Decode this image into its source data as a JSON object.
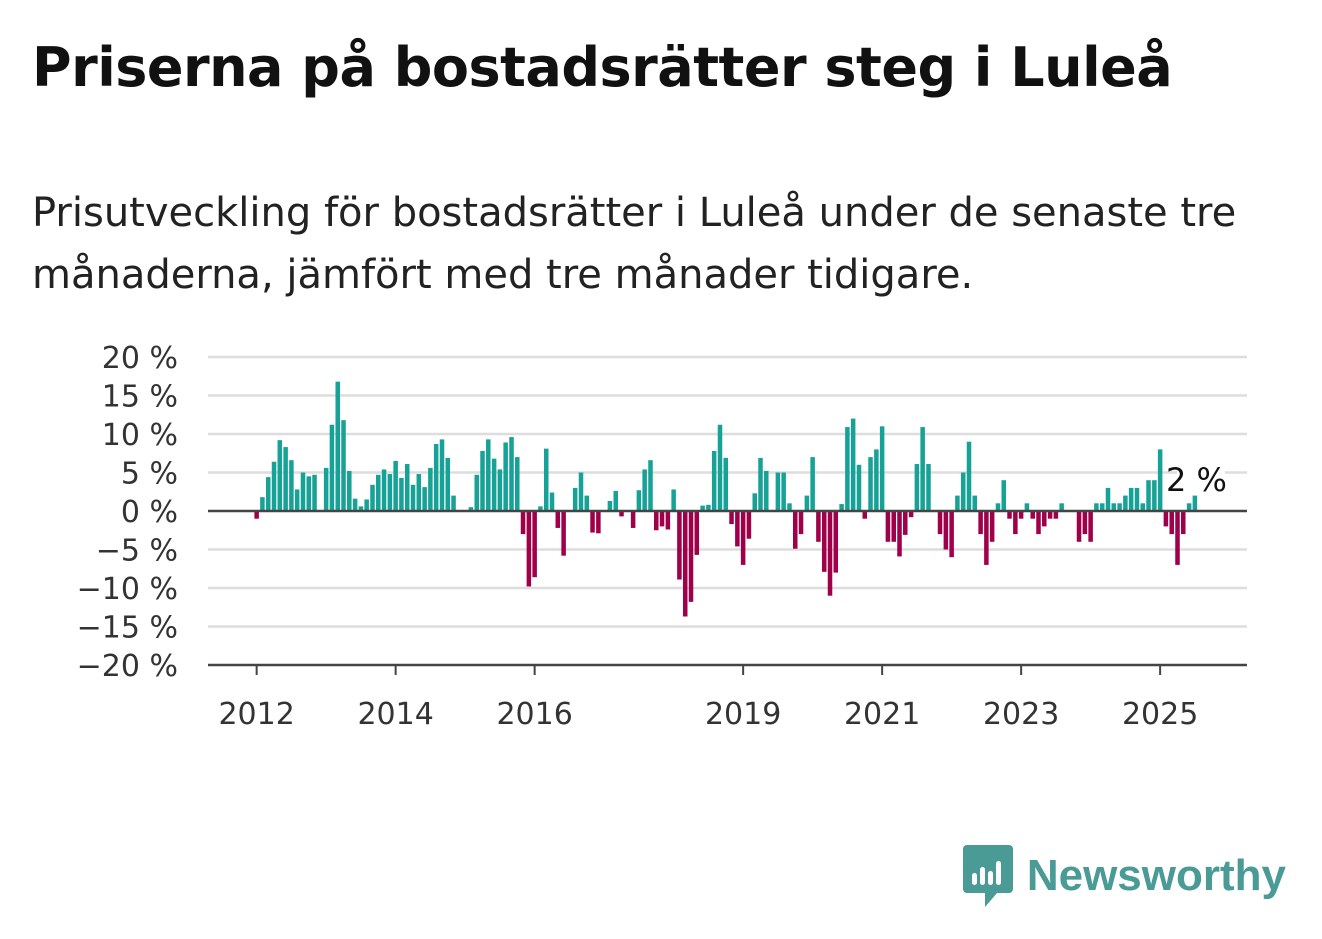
{
  "title": "Priserna på bostadsrätter steg i Luleå",
  "subtitle": "Prisutveckling för bostadsrätter i Luleå under de senaste tre månaderna, jämfört med tre månader tidigare.",
  "brand": {
    "name": "Newsworthy",
    "icon": "newsworthy-logo-icon"
  },
  "colors": {
    "positive": "#17a297",
    "negative": "#a0004a",
    "grid": "#dddddd",
    "axis": "#444444"
  },
  "chart_data": {
    "type": "bar",
    "title": "Priserna på bostadsrätter steg i Luleå",
    "ylim": [
      -20,
      20
    ],
    "xlim": [
      2011.3,
      2026.25
    ],
    "yticks": [
      20,
      15,
      10,
      5,
      0,
      -5,
      -10,
      -15,
      -20
    ],
    "ytick_labels": [
      "20 %",
      "15 %",
      "10 %",
      "5 %",
      "0 %",
      "−5 %",
      "−10 %",
      "−15 %",
      "−20 %"
    ],
    "xticks": [
      2012,
      2014,
      2016,
      2019,
      2021,
      2023,
      2025
    ],
    "xtick_labels": [
      "2012",
      "2014",
      "2016",
      "2019",
      "2021",
      "2023",
      "2025"
    ],
    "grid": true,
    "annotation": {
      "text": "2 %",
      "value": 2
    },
    "x": [
      2012.0,
      2012.083,
      2012.167,
      2012.25,
      2012.333,
      2012.417,
      2012.5,
      2012.583,
      2012.667,
      2012.75,
      2012.833,
      2012.917,
      2013.0,
      2013.083,
      2013.167,
      2013.25,
      2013.333,
      2013.417,
      2013.5,
      2013.583,
      2013.667,
      2013.75,
      2013.833,
      2013.917,
      2014.0,
      2014.083,
      2014.167,
      2014.25,
      2014.333,
      2014.417,
      2014.5,
      2014.583,
      2014.667,
      2014.75,
      2014.833,
      2014.917,
      2015.0,
      2015.083,
      2015.167,
      2015.25,
      2015.333,
      2015.417,
      2015.5,
      2015.583,
      2015.667,
      2015.75,
      2015.833,
      2015.917,
      2016.0,
      2016.083,
      2016.167,
      2016.25,
      2016.333,
      2016.417,
      2016.5,
      2016.583,
      2016.667,
      2016.75,
      2016.833,
      2016.917,
      2017.0,
      2017.083,
      2017.167,
      2017.25,
      2017.333,
      2017.417,
      2017.5,
      2017.583,
      2017.667,
      2017.75,
      2017.833,
      2017.917,
      2018.0,
      2018.083,
      2018.167,
      2018.25,
      2018.333,
      2018.417,
      2018.5,
      2018.583,
      2018.667,
      2018.75,
      2018.833,
      2018.917,
      2019.0,
      2019.083,
      2019.167,
      2019.25,
      2019.333,
      2019.417,
      2019.5,
      2019.583,
      2019.667,
      2019.75,
      2019.833,
      2019.917,
      2020.0,
      2020.083,
      2020.167,
      2020.25,
      2020.333,
      2020.417,
      2020.5,
      2020.583,
      2020.667,
      2020.75,
      2020.833,
      2020.917,
      2021.0,
      2021.083,
      2021.167,
      2021.25,
      2021.333,
      2021.417,
      2021.5,
      2021.583,
      2021.667,
      2021.75,
      2021.833,
      2021.917,
      2022.0,
      2022.083,
      2022.167,
      2022.25,
      2022.333,
      2022.417,
      2022.5,
      2022.583,
      2022.667,
      2022.75,
      2022.833,
      2022.917,
      2023.0,
      2023.083,
      2023.167,
      2023.25,
      2023.333,
      2023.417,
      2023.5,
      2023.583,
      2023.667,
      2023.75,
      2023.833,
      2023.917,
      2024.0,
      2024.083,
      2024.167,
      2024.25,
      2024.333,
      2024.417,
      2024.5,
      2024.583,
      2024.667,
      2024.75,
      2024.833,
      2024.917,
      2025.0,
      2025.083,
      2025.167,
      2025.25,
      2025.333,
      2025.417,
      2025.5
    ],
    "values": [
      -1.0,
      1.8,
      4.4,
      6.4,
      9.2,
      8.3,
      6.6,
      2.8,
      5.0,
      4.5,
      4.7,
      0.0,
      5.6,
      11.2,
      16.8,
      11.8,
      5.2,
      1.6,
      0.6,
      1.5,
      3.4,
      4.7,
      5.4,
      4.8,
      6.5,
      4.3,
      6.1,
      3.4,
      4.8,
      3.1,
      5.6,
      8.7,
      9.3,
      6.9,
      2.0,
      0.0,
      0.0,
      0.5,
      4.7,
      7.8,
      9.3,
      6.8,
      5.4,
      8.9,
      9.6,
      7.0,
      -3.0,
      -9.8,
      -8.6,
      0.6,
      8.1,
      2.4,
      -2.2,
      -5.8,
      0.0,
      3.0,
      5.0,
      2.0,
      -2.8,
      -2.9,
      0.0,
      1.3,
      2.6,
      -0.7,
      0.0,
      -2.2,
      2.7,
      5.4,
      6.6,
      -2.5,
      -2.0,
      -2.4,
      2.8,
      -8.9,
      -13.7,
      -11.8,
      -5.7,
      0.7,
      0.8,
      7.8,
      11.2,
      6.9,
      -1.7,
      -4.6,
      -7.0,
      -3.6,
      2.3,
      6.9,
      5.2,
      0.0,
      5.0,
      5.0,
      1.0,
      -4.9,
      -3.0,
      2.0,
      7.0,
      -4.0,
      -7.9,
      -11.0,
      -8.0,
      0.9,
      10.9,
      12.0,
      6.0,
      -1.0,
      7.0,
      8.0,
      11.0,
      -4.0,
      -4.0,
      -5.9,
      -3.1,
      -0.8,
      6.1,
      10.9,
      6.1,
      0.0,
      -3.0,
      -5.0,
      -6.0,
      2.0,
      5.0,
      9.0,
      2.0,
      -3.0,
      -7.0,
      -4.0,
      1.0,
      4.0,
      -1.0,
      -3.0,
      -1.0,
      1.0,
      -1.0,
      -3.0,
      -2.0,
      -1.0,
      -1.0,
      1.0,
      0.0,
      0.0,
      -4.0,
      -3.0,
      -4.0,
      1.0,
      1.0,
      3.0,
      1.0,
      1.0,
      2.0,
      3.0,
      3.0,
      1.0,
      4.0,
      4.0,
      8.0,
      -2.0,
      -3.0,
      -7.0,
      -3.0,
      1.0,
      2.0
    ]
  }
}
